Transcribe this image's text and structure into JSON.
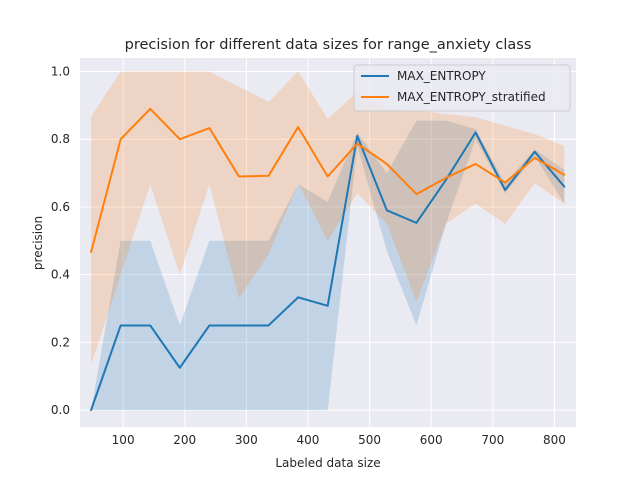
{
  "chart_data": {
    "type": "line",
    "title": "precision for different data sizes for range_anxiety class",
    "xlabel": "Labeled data size",
    "ylabel": "precision",
    "xlim": [
      30,
      835
    ],
    "ylim": [
      -0.05,
      1.04
    ],
    "xticks": [
      100,
      200,
      300,
      400,
      500,
      600,
      700,
      800
    ],
    "yticks": [
      0.0,
      0.2,
      0.4,
      0.6,
      0.8,
      1.0
    ],
    "grid": true,
    "legend_position": "top-right",
    "x": [
      48,
      96,
      144,
      192,
      240,
      288,
      336,
      384,
      432,
      480,
      528,
      576,
      624,
      672,
      720,
      768,
      816
    ],
    "series": [
      {
        "name": "MAX_ENTROPY",
        "color": "#1f77b4",
        "band_color": "#1f77b4",
        "values": [
          0.0,
          0.25,
          0.25,
          0.125,
          0.25,
          0.25,
          0.25,
          0.333,
          0.308,
          0.81,
          0.59,
          0.553,
          0.68,
          0.82,
          0.65,
          0.763,
          0.66
        ],
        "lower": [
          0.0,
          0.0,
          0.0,
          0.0,
          0.0,
          0.0,
          0.0,
          0.0,
          0.0,
          0.78,
          0.47,
          0.25,
          0.55,
          0.8,
          0.64,
          0.75,
          0.61
        ],
        "upper": [
          0.0,
          0.5,
          0.5,
          0.25,
          0.5,
          0.5,
          0.5,
          0.667,
          0.615,
          0.82,
          0.7,
          0.855,
          0.855,
          0.83,
          0.67,
          0.77,
          0.71
        ]
      },
      {
        "name": "MAX_ENTROPY_stratified",
        "color": "#ff7f0e",
        "band_color": "#ff7f0e",
        "values": [
          0.467,
          0.8,
          0.89,
          0.8,
          0.833,
          0.69,
          0.692,
          0.836,
          0.69,
          0.787,
          0.727,
          0.638,
          0.686,
          0.727,
          0.672,
          0.745,
          0.695
        ],
        "lower": [
          0.133,
          0.4,
          0.667,
          0.4,
          0.667,
          0.33,
          0.46,
          0.67,
          0.5,
          0.64,
          0.55,
          0.32,
          0.55,
          0.61,
          0.55,
          0.67,
          0.61
        ],
        "upper": [
          0.867,
          1.0,
          1.0,
          1.0,
          1.0,
          0.955,
          0.91,
          1.0,
          0.86,
          0.94,
          0.89,
          0.885,
          0.875,
          0.865,
          0.84,
          0.815,
          0.78
        ]
      }
    ]
  }
}
